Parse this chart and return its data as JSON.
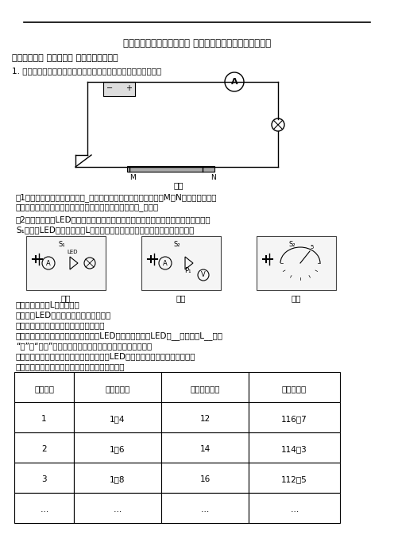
{
  "title": "『物理』东南大学附属中学 九年级上册期末精选试卷检测题",
  "section1": "一、初三物理 电流和电路 易错压轴题（难）",
  "q1_intro": "1. 小明利用铅笔芒和鳄鱼夹制作了简易调光灯，装置如图甲所示。",
  "figure_label": "图甲",
  "q1_part1": "（1）甲图中有一处明显错误是_；改正后，闭合开关，改变鳄鱼夹M、N之间距离，发现",
  "q1_part1b": "灯泡亮度会发生变化，这一现象说明导体的电阔与导体的_有关。",
  "q1_part2": "（2）小明用一个LED灯替换铅笔芒，与小灯泡串联后接入电路（如图乙），闭合开关",
  "q1_part2b": "S₁，发现LED灯亮而小灯泡L不亮。针对这种现象，同学们提出了以下猜想：",
  "figure_labels_bottom": [
    "图乙",
    "图丙",
    "图丁"
  ],
  "guess1": "猜想一：小灯泡L处发生短路",
  "guess2": "猜想二：LED灯电阔大导致电路电流很小",
  "verify_intro": "为了验证猜想，小组同学进行如下实验：",
  "exp1": "实验一：将一根导线并联在图乙电路中LED灯的两端，此时LED灯__，小灯泡L__（填",
  "exp1b": "“亮”或“不亮”），根据观察到的现象进行判断一是错误的。",
  "exp2": "利用电流表和电压表，按图丙所示的电路对LED灯的电阔进行测量，闭合开关依",
  "exp2b": "次移动滑动变阔器的滑片，获得多组数据如下表。",
  "table_headers": [
    "实验次数",
    "电压（伏）",
    "电流（毫安）",
    "电阔（欧）"
  ],
  "table_data": [
    [
      "1",
      "1１4",
      "12",
      "116１7"
    ],
    [
      "2",
      "1１6",
      "14",
      "114１3"
    ],
    [
      "3",
      "1１8",
      "16",
      "112１5"
    ],
    [
      "…",
      "…",
      "…",
      "…"
    ]
  ],
  "bg_color": "#ffffff",
  "text_color": "#000000",
  "line_color": "#000000"
}
